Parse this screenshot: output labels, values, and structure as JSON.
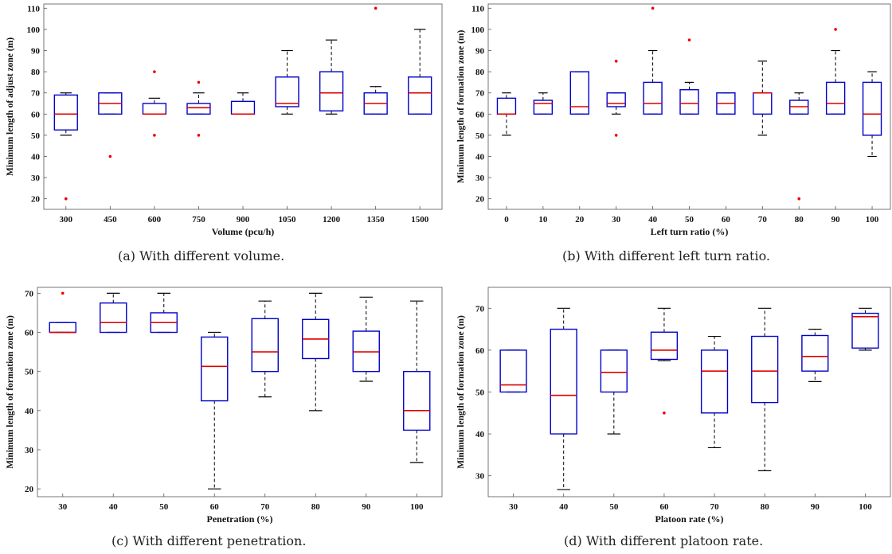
{
  "chart_data": [
    {
      "id": "a",
      "type": "boxplot",
      "caption": "(a) With different volume.",
      "xlabel": "Volume (pcu/h)",
      "ylabel": "Minimum length of adjust zone (m)",
      "categories": [
        "300",
        "450",
        "600",
        "750",
        "900",
        "1050",
        "1200",
        "1350",
        "1500"
      ],
      "ylim": [
        15,
        112
      ],
      "yticks": [
        20,
        30,
        40,
        50,
        60,
        70,
        80,
        90,
        100,
        110
      ],
      "colors": {
        "box": "#0000cc",
        "median": "#dd0000",
        "whisker": "#000000",
        "outlier": "#ee0000"
      },
      "boxes": [
        {
          "q1": 52.5,
          "median": 60,
          "q3": 69,
          "lo": 50,
          "hi": 70,
          "outliers": [
            20
          ]
        },
        {
          "q1": 60,
          "median": 65,
          "q3": 70,
          "lo": 60,
          "hi": 70,
          "outliers": [
            40
          ]
        },
        {
          "q1": 60,
          "median": 60,
          "q3": 65,
          "lo": 60,
          "hi": 67.5,
          "outliers": [
            50,
            80
          ]
        },
        {
          "q1": 60,
          "median": 63,
          "q3": 65,
          "lo": 60,
          "hi": 70,
          "outliers": [
            50,
            75
          ]
        },
        {
          "q1": 60,
          "median": 60,
          "q3": 66,
          "lo": 60,
          "hi": 70,
          "outliers": []
        },
        {
          "q1": 63.5,
          "median": 65,
          "q3": 77.5,
          "lo": 60,
          "hi": 90,
          "outliers": []
        },
        {
          "q1": 61.5,
          "median": 70,
          "q3": 80,
          "lo": 60,
          "hi": 95,
          "outliers": []
        },
        {
          "q1": 60,
          "median": 65,
          "q3": 70,
          "lo": 60,
          "hi": 73,
          "outliers": [
            110
          ]
        },
        {
          "q1": 60,
          "median": 70,
          "q3": 77.5,
          "lo": 60,
          "hi": 100,
          "outliers": []
        }
      ]
    },
    {
      "id": "b",
      "type": "boxplot",
      "caption": "(b) With different left turn ratio.",
      "xlabel": "Left turn ratio (%)",
      "ylabel": "Minimum length of formation zone (m)",
      "categories": [
        "0",
        "10",
        "20",
        "30",
        "40",
        "50",
        "60",
        "70",
        "80",
        "90",
        "100"
      ],
      "ylim": [
        15,
        112
      ],
      "yticks": [
        20,
        30,
        40,
        50,
        60,
        70,
        80,
        90,
        100,
        110
      ],
      "colors": {
        "box": "#0000cc",
        "median": "#dd0000",
        "whisker": "#000000",
        "outlier": "#ee0000"
      },
      "boxes": [
        {
          "q1": 60,
          "median": 60,
          "q3": 67.5,
          "lo": 50,
          "hi": 70,
          "outliers": []
        },
        {
          "q1": 60,
          "median": 65,
          "q3": 66.5,
          "lo": 60,
          "hi": 70,
          "outliers": []
        },
        {
          "q1": 60,
          "median": 63.5,
          "q3": 80,
          "lo": 60,
          "hi": 80,
          "outliers": []
        },
        {
          "q1": 63.5,
          "median": 65,
          "q3": 70,
          "lo": 60,
          "hi": 70,
          "outliers": [
            85,
            50
          ]
        },
        {
          "q1": 60,
          "median": 65,
          "q3": 75,
          "lo": 60,
          "hi": 90,
          "outliers": [
            110
          ]
        },
        {
          "q1": 60,
          "median": 65,
          "q3": 71.5,
          "lo": 60,
          "hi": 75,
          "outliers": [
            95
          ]
        },
        {
          "q1": 60,
          "median": 65,
          "q3": 70,
          "lo": 60,
          "hi": 70,
          "outliers": []
        },
        {
          "q1": 60,
          "median": 70,
          "q3": 70,
          "lo": 50,
          "hi": 85,
          "outliers": []
        },
        {
          "q1": 60,
          "median": 63.5,
          "q3": 66.5,
          "lo": 60,
          "hi": 70,
          "outliers": [
            20
          ]
        },
        {
          "q1": 60,
          "median": 65,
          "q3": 75,
          "lo": 60,
          "hi": 90,
          "outliers": [
            100
          ]
        },
        {
          "q1": 50,
          "median": 60,
          "q3": 75,
          "lo": 40,
          "hi": 80,
          "outliers": []
        }
      ]
    },
    {
      "id": "c",
      "type": "boxplot",
      "caption": "(c) With different penetration.",
      "xlabel": "Penetration (%)",
      "ylabel": "Minimum length of formation zone (m)",
      "categories": [
        "30",
        "40",
        "50",
        "60",
        "70",
        "80",
        "90",
        "100"
      ],
      "ylim": [
        18,
        71.5
      ],
      "yticks": [
        20,
        30,
        40,
        50,
        60,
        70
      ],
      "colors": {
        "box": "#0000cc",
        "median": "#dd0000",
        "whisker": "#000000",
        "outlier": "#ee0000"
      },
      "boxes": [
        {
          "q1": 60,
          "median": 60,
          "q3": 62.5,
          "lo": 60,
          "hi": 62.5,
          "outliers": [
            70
          ]
        },
        {
          "q1": 60,
          "median": 62.5,
          "q3": 67.5,
          "lo": 60,
          "hi": 70,
          "outliers": []
        },
        {
          "q1": 60,
          "median": 62.5,
          "q3": 65,
          "lo": 60,
          "hi": 70,
          "outliers": []
        },
        {
          "q1": 42.5,
          "median": 51.3,
          "q3": 58.8,
          "lo": 20,
          "hi": 60,
          "outliers": []
        },
        {
          "q1": 50,
          "median": 55,
          "q3": 63.5,
          "lo": 43.5,
          "hi": 68,
          "outliers": []
        },
        {
          "q1": 53.3,
          "median": 58.3,
          "q3": 63.3,
          "lo": 40,
          "hi": 70,
          "outliers": []
        },
        {
          "q1": 50,
          "median": 55,
          "q3": 60.3,
          "lo": 47.5,
          "hi": 69,
          "outliers": []
        },
        {
          "q1": 35,
          "median": 40,
          "q3": 50,
          "lo": 26.7,
          "hi": 68,
          "outliers": []
        }
      ]
    },
    {
      "id": "d",
      "type": "boxplot",
      "caption": "(d) With different platoon rate.",
      "xlabel": "Platoon rate (%)",
      "ylabel": "Minimum length of formation zone (m)",
      "categories": [
        "30",
        "40",
        "50",
        "60",
        "70",
        "80",
        "90",
        "100"
      ],
      "ylim": [
        25,
        75
      ],
      "yticks": [
        30,
        40,
        50,
        60,
        70
      ],
      "colors": {
        "box": "#0000cc",
        "median": "#dd0000",
        "whisker": "#000000",
        "outlier": "#ee0000"
      },
      "boxes": [
        {
          "q1": 50,
          "median": 51.7,
          "q3": 60,
          "lo": 50,
          "hi": 60,
          "outliers": []
        },
        {
          "q1": 40,
          "median": 49.2,
          "q3": 65,
          "lo": 26.7,
          "hi": 70,
          "outliers": []
        },
        {
          "q1": 50,
          "median": 54.7,
          "q3": 60,
          "lo": 40,
          "hi": 60,
          "outliers": []
        },
        {
          "q1": 57.8,
          "median": 60,
          "q3": 64.3,
          "lo": 57.5,
          "hi": 70,
          "outliers": [
            45
          ]
        },
        {
          "q1": 45,
          "median": 55,
          "q3": 60,
          "lo": 36.7,
          "hi": 63.3,
          "outliers": []
        },
        {
          "q1": 47.5,
          "median": 55,
          "q3": 63.3,
          "lo": 31.2,
          "hi": 70,
          "outliers": []
        },
        {
          "q1": 55,
          "median": 58.5,
          "q3": 63.5,
          "lo": 52.5,
          "hi": 65,
          "outliers": []
        },
        {
          "q1": 60.5,
          "median": 68,
          "q3": 68.8,
          "lo": 60,
          "hi": 70,
          "outliers": []
        }
      ]
    }
  ]
}
